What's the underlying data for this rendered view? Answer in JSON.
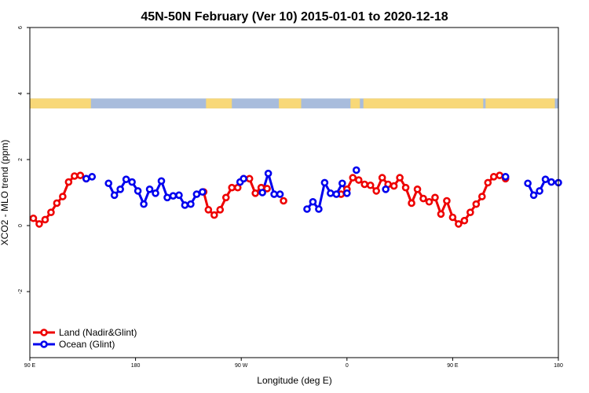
{
  "chart_data": {
    "type": "line",
    "title": "45N-50N February (Ver 10)   2015-01-01 to 2020-12-18",
    "xlabel": "Longitude (deg E)",
    "ylabel": "XCO2 - MLO trend (ppm)",
    "xlim": [
      90,
      540
    ],
    "ylim": [
      -4,
      6
    ],
    "x_ticks": [
      {
        "value": 90,
        "label": "90 E"
      },
      {
        "value": 180,
        "label": "180"
      },
      {
        "value": 270,
        "label": "90 W"
      },
      {
        "value": 360,
        "label": "0"
      },
      {
        "value": 450,
        "label": "90 E"
      },
      {
        "value": 540,
        "label": "180"
      }
    ],
    "y_ticks": [
      {
        "value": -2,
        "label": "-2"
      },
      {
        "value": 0,
        "label": "0"
      },
      {
        "value": 2,
        "label": "2"
      },
      {
        "value": 4,
        "label": "4"
      },
      {
        "value": 6,
        "label": "6"
      }
    ],
    "legend_position": "bottom-left",
    "land_band": {
      "y_range": [
        3.55,
        3.85
      ],
      "land_color": "#f8d878",
      "ocean_color": "#a8bcdc",
      "land_segments": [
        [
          90,
          142
        ],
        [
          240,
          262
        ],
        [
          302,
          321
        ],
        [
          363,
          371
        ],
        [
          374,
          476
        ],
        [
          478,
          537
        ]
      ]
    },
    "series": [
      {
        "name": "Land (Nadir&Glint)",
        "color": "#ee0000",
        "segments": [
          [
            [
              93,
              0.22
            ],
            [
              98,
              0.05
            ],
            [
              103,
              0.18
            ],
            [
              108,
              0.4
            ],
            [
              113,
              0.68
            ],
            [
              118,
              0.88
            ],
            [
              123,
              1.32
            ],
            [
              128,
              1.5
            ],
            [
              133,
              1.52
            ],
            [
              138,
              1.42
            ]
          ],
          [
            [
              238,
              1.02
            ],
            [
              242,
              0.48
            ],
            [
              247,
              0.32
            ],
            [
              252,
              0.48
            ],
            [
              257,
              0.85
            ],
            [
              262,
              1.15
            ],
            [
              267,
              1.15
            ],
            [
              272,
              1.42
            ],
            [
              277,
              1.42
            ],
            [
              282,
              0.98
            ],
            [
              287,
              1.15
            ],
            [
              292,
              1.12
            ]
          ],
          [
            [
              306,
              0.75
            ]
          ],
          [
            [
              355,
              0.95
            ],
            [
              360,
              1.1
            ],
            [
              365,
              1.45
            ],
            [
              370,
              1.38
            ],
            [
              375,
              1.25
            ],
            [
              380,
              1.22
            ],
            [
              385,
              1.05
            ],
            [
              390,
              1.45
            ],
            [
              395,
              1.25
            ],
            [
              400,
              1.2
            ],
            [
              405,
              1.45
            ],
            [
              410,
              1.15
            ],
            [
              415,
              0.68
            ],
            [
              420,
              1.1
            ],
            [
              425,
              0.82
            ],
            [
              430,
              0.72
            ],
            [
              435,
              0.85
            ],
            [
              440,
              0.35
            ],
            [
              445,
              0.75
            ],
            [
              450,
              0.25
            ],
            [
              455,
              0.05
            ],
            [
              460,
              0.15
            ],
            [
              465,
              0.4
            ],
            [
              470,
              0.65
            ],
            [
              475,
              0.88
            ],
            [
              480,
              1.3
            ],
            [
              485,
              1.48
            ],
            [
              490,
              1.52
            ],
            [
              495,
              1.42
            ]
          ]
        ]
      },
      {
        "name": "Ocean (Glint)",
        "color": "#0000ee",
        "segments": [
          [
            [
              138,
              1.42
            ],
            [
              143,
              1.48
            ]
          ],
          [
            [
              157,
              1.28
            ],
            [
              162,
              0.92
            ],
            [
              167,
              1.1
            ],
            [
              172,
              1.4
            ],
            [
              177,
              1.32
            ],
            [
              182,
              1.05
            ],
            [
              187,
              0.65
            ],
            [
              192,
              1.1
            ],
            [
              197,
              0.98
            ],
            [
              202,
              1.35
            ],
            [
              207,
              0.85
            ],
            [
              212,
              0.9
            ],
            [
              217,
              0.92
            ],
            [
              222,
              0.62
            ],
            [
              227,
              0.65
            ],
            [
              232,
              0.95
            ],
            [
              237,
              1.02
            ]
          ],
          [
            [
              269,
              1.32
            ],
            [
              272,
              1.42
            ]
          ],
          [
            [
              288,
              1.0
            ],
            [
              293,
              1.58
            ],
            [
              298,
              0.95
            ],
            [
              303,
              0.95
            ]
          ],
          [
            [
              326,
              0.5
            ],
            [
              331,
              0.72
            ],
            [
              336,
              0.5
            ],
            [
              341,
              1.3
            ],
            [
              346,
              0.98
            ],
            [
              351,
              0.95
            ],
            [
              356,
              1.28
            ],
            [
              360,
              0.98
            ]
          ],
          [
            [
              368,
              1.68
            ]
          ],
          [
            [
              393,
              1.1
            ]
          ],
          [
            [
              495,
              1.48
            ]
          ],
          [
            [
              514,
              1.28
            ],
            [
              519,
              0.92
            ],
            [
              524,
              1.05
            ],
            [
              529,
              1.4
            ],
            [
              534,
              1.32
            ],
            [
              540,
              1.3
            ]
          ]
        ]
      }
    ]
  }
}
